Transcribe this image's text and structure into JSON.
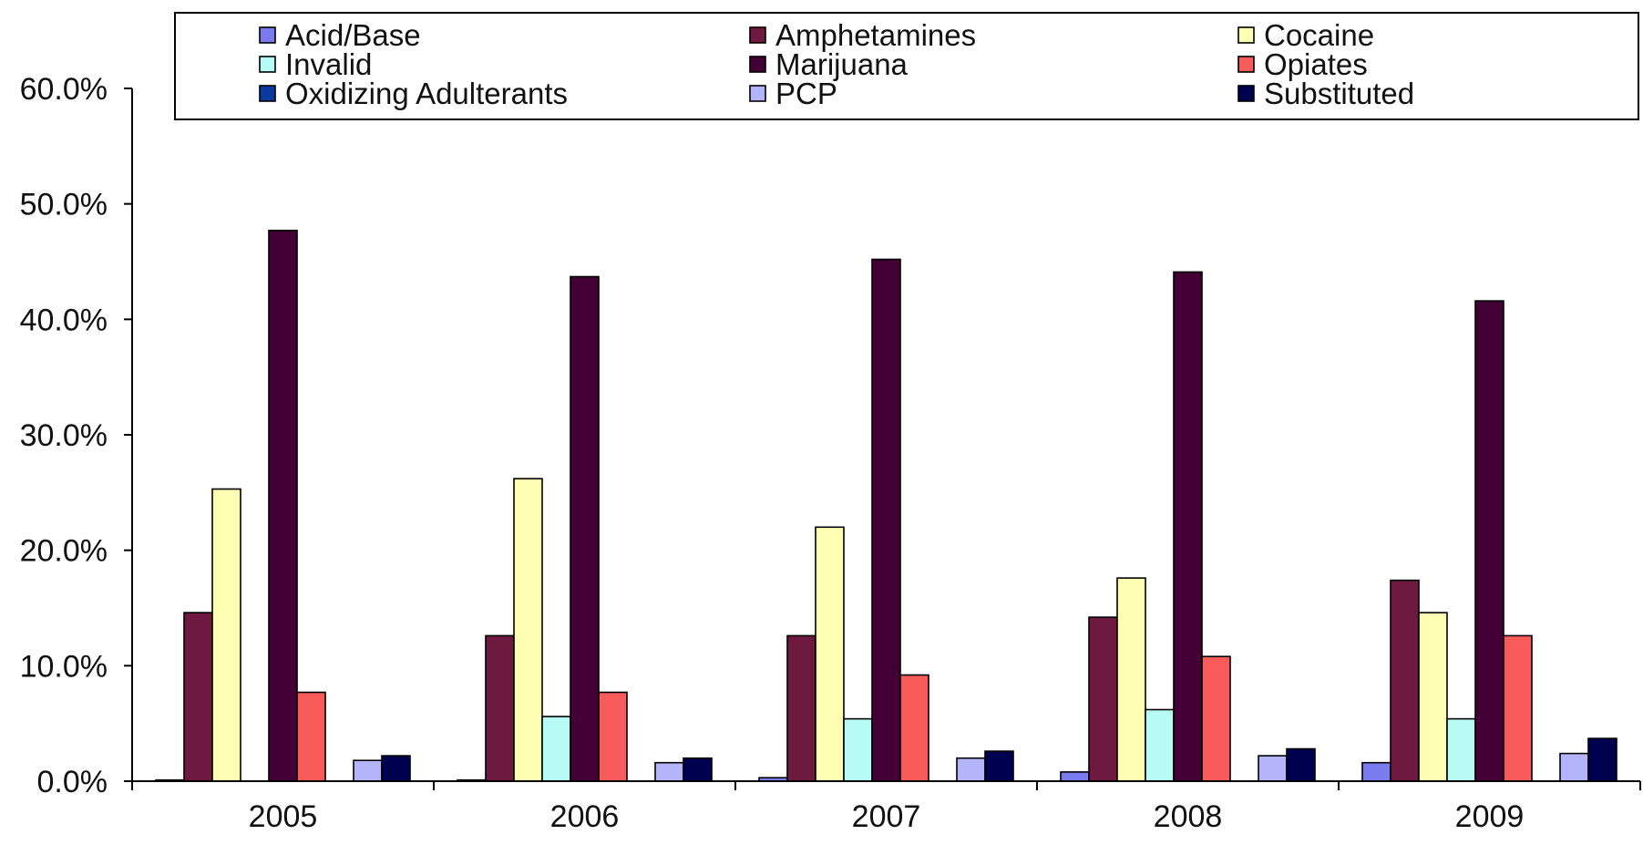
{
  "chart_data": {
    "type": "bar",
    "categories": [
      "2005",
      "2006",
      "2007",
      "2008",
      "2009"
    ],
    "series": [
      {
        "name": "Acid/Base",
        "color": "#7b7bf0",
        "values": [
          0.1,
          0.1,
          0.3,
          0.8,
          1.6
        ]
      },
      {
        "name": "Amphetamines",
        "color": "#6e1a40",
        "values": [
          14.6,
          12.6,
          12.6,
          14.2,
          17.4
        ]
      },
      {
        "name": "Cocaine",
        "color": "#ffffb4",
        "values": [
          25.3,
          26.2,
          22.0,
          17.6,
          14.6
        ]
      },
      {
        "name": "Invalid",
        "color": "#b8fcf6",
        "values": [
          0.0,
          5.6,
          5.4,
          6.2,
          5.4
        ]
      },
      {
        "name": "Marijuana",
        "color": "#420035",
        "values": [
          47.7,
          43.7,
          45.2,
          44.1,
          41.6
        ]
      },
      {
        "name": "Opiates",
        "color": "#f85c5a",
        "values": [
          7.7,
          7.7,
          9.2,
          10.8,
          12.6
        ]
      },
      {
        "name": "Oxidizing Adulterants",
        "color": "#0a3aa0",
        "values": [
          0.0,
          0.0,
          0.0,
          0.0,
          0.0
        ]
      },
      {
        "name": "PCP",
        "color": "#b4b4fa",
        "values": [
          1.8,
          1.6,
          2.0,
          2.2,
          2.4
        ]
      },
      {
        "name": "Substituted",
        "color": "#000050",
        "values": [
          2.2,
          2.0,
          2.6,
          2.8,
          3.7
        ]
      }
    ],
    "yticks": [
      "0.0%",
      "10.0%",
      "20.0%",
      "30.0%",
      "40.0%",
      "50.0%",
      "60.0%"
    ],
    "ylim": [
      0,
      60
    ],
    "grid": false,
    "legend": "top",
    "title": "",
    "xlabel": "",
    "ylabel": ""
  }
}
